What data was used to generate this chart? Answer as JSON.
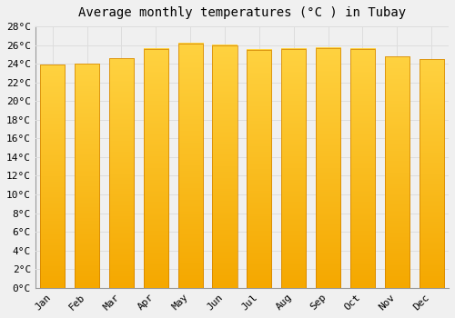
{
  "months": [
    "Jan",
    "Feb",
    "Mar",
    "Apr",
    "May",
    "Jun",
    "Jul",
    "Aug",
    "Sep",
    "Oct",
    "Nov",
    "Dec"
  ],
  "temperatures": [
    23.9,
    24.0,
    24.6,
    25.6,
    26.2,
    26.0,
    25.5,
    25.6,
    25.7,
    25.6,
    24.8,
    24.5
  ],
  "title": "Average monthly temperatures (°C ) in Tubay",
  "ylim": [
    0,
    28
  ],
  "yticks": [
    0,
    2,
    4,
    6,
    8,
    10,
    12,
    14,
    16,
    18,
    20,
    22,
    24,
    26,
    28
  ],
  "bar_color_bottom": "#F5A800",
  "bar_color_top": "#FFD040",
  "bar_edge_color": "#D08000",
  "background_color": "#F0F0F0",
  "grid_color": "#DDDDDD",
  "title_fontsize": 10,
  "tick_fontsize": 8
}
